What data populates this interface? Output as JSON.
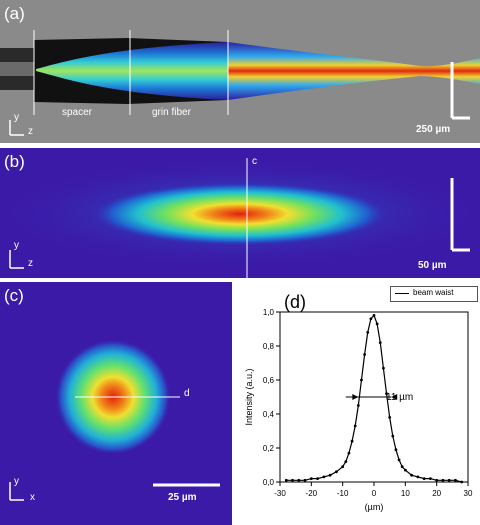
{
  "panel_a": {
    "label": "(a)",
    "spacer_label": "spacer",
    "grin_label": "grin fiber",
    "axis_y": "y",
    "axis_z": "z",
    "scale_label": "250 µm"
  },
  "panel_b": {
    "label": "(b)",
    "marker": "c",
    "axis_y": "y",
    "axis_z": "z",
    "scale_label": "50 µm"
  },
  "panel_c": {
    "label": "(c)",
    "marker": "d",
    "axis_y": "y",
    "axis_x": "x",
    "scale_label": "25 µm"
  },
  "panel_d": {
    "label": "(d)",
    "legend": "beam waist",
    "annotation": "11 µm"
  },
  "chart_data": {
    "type": "scatter",
    "title": "",
    "xlabel": "(µm)",
    "ylabel": "Intensity (a.u.)",
    "xlim": [
      -30,
      30
    ],
    "ylim": [
      0,
      1.0
    ],
    "xticks": [
      "-30",
      "-20",
      "-10",
      "0",
      "10",
      "20",
      "30"
    ],
    "yticks": [
      "0,0",
      "0,2",
      "0,4",
      "0,6",
      "0,8",
      "1,0"
    ],
    "series": [
      {
        "name": "beam waist",
        "x": [
          -28,
          -26,
          -24,
          -22,
          -20,
          -18,
          -16,
          -14,
          -12,
          -10,
          -9,
          -8,
          -7,
          -6,
          -5,
          -4,
          -3,
          -2,
          -1,
          0,
          1,
          2,
          3,
          4,
          5,
          6,
          7,
          8,
          9,
          10,
          12,
          14,
          16,
          18,
          20,
          22,
          24,
          26,
          28
        ],
        "y": [
          0.01,
          0.01,
          0.01,
          0.01,
          0.02,
          0.02,
          0.03,
          0.04,
          0.06,
          0.09,
          0.12,
          0.17,
          0.24,
          0.33,
          0.45,
          0.6,
          0.75,
          0.88,
          0.96,
          0.98,
          0.93,
          0.82,
          0.67,
          0.52,
          0.38,
          0.27,
          0.19,
          0.13,
          0.09,
          0.07,
          0.04,
          0.03,
          0.02,
          0.02,
          0.01,
          0.01,
          0.01,
          0.01,
          0.0
        ]
      }
    ]
  }
}
